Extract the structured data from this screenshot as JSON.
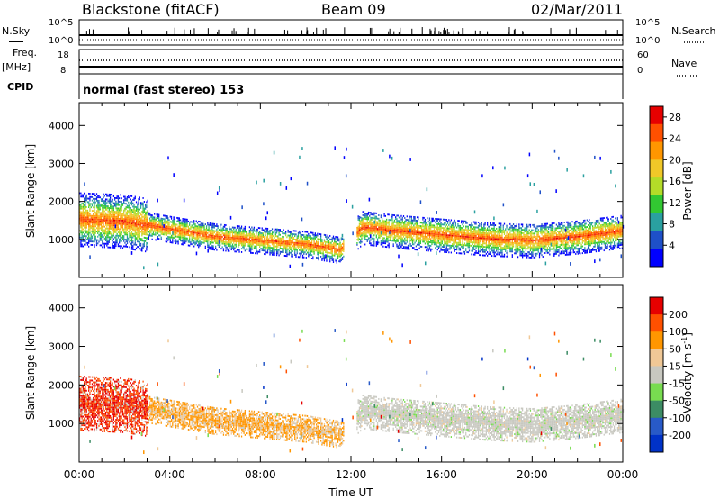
{
  "header": {
    "station": "Blackstone (fitACF)",
    "beam": "Beam 09",
    "date": "02/Mar/2011"
  },
  "top_panels": {
    "nsky_label": "N.Sky",
    "nsky_ticks": [
      "10^5",
      "10^0"
    ],
    "nsearch_label": "N.Search",
    "nsearch_ticks": [
      "10^5",
      "10^0"
    ],
    "freq_label": "Freq.",
    "freq_unit": "[MHz]",
    "freq_ticks": [
      "18",
      "8"
    ],
    "nave_label": "Nave",
    "nave_ticks": [
      "60",
      "0"
    ],
    "cpid_label": "CPID",
    "cpid_text": "normal (fast stereo) 153"
  },
  "colors": {
    "power": [
      "#0000ff",
      "#1e50c8",
      "#2aa0a0",
      "#32c832",
      "#b4dc28",
      "#f0c828",
      "#ff9600",
      "#ff5000",
      "#e60000"
    ],
    "velocity": [
      "#e60000",
      "#ff5000",
      "#ff9600",
      "#f0c896",
      "#c8c8c0",
      "#78dc50",
      "#3c8c64",
      "#285ac8",
      "#0032c8"
    ],
    "ground_scatter": "#c8c8c0"
  },
  "chart_data": [
    {
      "type": "heatmap",
      "title": "",
      "xlabel": "",
      "ylabel": "Slant Range [km]",
      "x_ticks": [
        "00:00",
        "04:00",
        "08:00",
        "12:00",
        "16:00",
        "20:00",
        "00:00"
      ],
      "xlim_hours": [
        0,
        24
      ],
      "ylim": [
        0,
        4600
      ],
      "y_ticks": [
        1000,
        2000,
        3000,
        4000
      ],
      "colorbar_label": "Power [dB]",
      "colorbar_ticks": [
        4,
        8,
        12,
        16,
        20,
        24,
        28
      ],
      "colorbar_range": [
        0,
        30
      ],
      "scatter_band_center_km": [
        [
          0,
          1500
        ],
        [
          2,
          1450
        ],
        [
          4,
          1250
        ],
        [
          6,
          1050
        ],
        [
          8,
          950
        ],
        [
          10,
          850
        ],
        [
          11.5,
          700
        ],
        [
          12.5,
          1300
        ],
        [
          14,
          1200
        ],
        [
          16,
          1100
        ],
        [
          18,
          1000
        ],
        [
          20,
          950
        ],
        [
          22,
          1050
        ],
        [
          24,
          1200
        ]
      ]
    },
    {
      "type": "heatmap",
      "title": "",
      "xlabel": "Time UT",
      "ylabel": "Slant Range [km]",
      "x_ticks": [
        "00:00",
        "04:00",
        "08:00",
        "12:00",
        "16:00",
        "20:00",
        "00:00"
      ],
      "xlim_hours": [
        0,
        24
      ],
      "ylim": [
        0,
        4600
      ],
      "y_ticks": [
        1000,
        2000,
        3000,
        4000
      ],
      "colorbar_label": "Velocity [m s",
      "colorbar_label_sup": "-1",
      "colorbar_label_end": "]",
      "colorbar_ticks": [
        200,
        100,
        50,
        15,
        -15,
        -50,
        -100,
        -200
      ],
      "colorbar_range": [
        -250,
        250
      ]
    }
  ]
}
